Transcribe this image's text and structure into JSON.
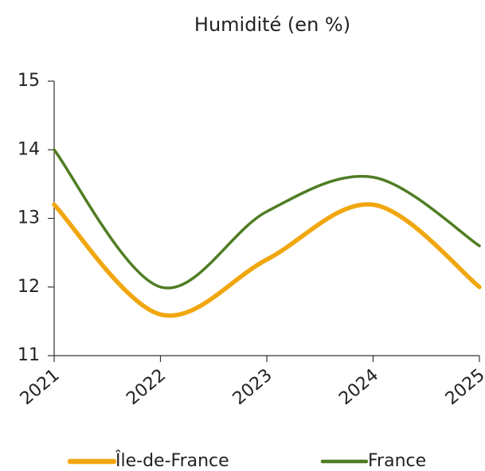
{
  "chart_data": {
    "type": "line",
    "title": "Humidité (en %)",
    "x": [
      2021,
      2022,
      2023,
      2024,
      2025
    ],
    "xlim": [
      2021,
      2025
    ],
    "xticks": [
      2021,
      2022,
      2023,
      2024,
      2025
    ],
    "ylim": [
      11,
      15
    ],
    "yticks": [
      11,
      12,
      13,
      14,
      15
    ],
    "series": [
      {
        "name": "Île-de-France",
        "color": "#f0a70f",
        "values": [
          13.2,
          11.6,
          12.4,
          13.2,
          12.0
        ]
      },
      {
        "name": "France",
        "color": "#4f7d23",
        "values": [
          14.0,
          12.0,
          13.1,
          13.6,
          12.6
        ]
      }
    ]
  }
}
